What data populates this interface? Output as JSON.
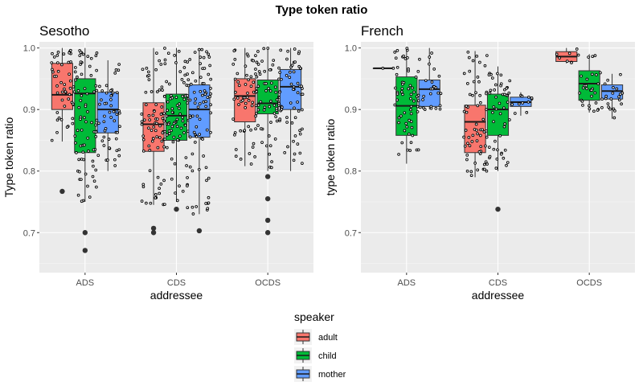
{
  "title": "Type token ratio",
  "legend": {
    "title": "speaker",
    "items": [
      {
        "label": "adult",
        "color": "#F8766D"
      },
      {
        "label": "child",
        "color": "#00BA38"
      },
      {
        "label": "mother",
        "color": "#619CFF"
      }
    ],
    "placement": "bottom-center"
  },
  "chart_data": [
    {
      "type": "boxplot",
      "title": "Sesotho",
      "xlabel": "addressee",
      "ylabel": "Type token ratio",
      "categories": [
        "ADS",
        "CDS",
        "OCDS"
      ],
      "ylim": [
        0.635,
        1.01
      ],
      "yticks": [
        "0.7",
        "0.8",
        "0.9",
        "1.0"
      ],
      "grid": true,
      "series": [
        {
          "name": "adult",
          "boxes": [
            {
              "category": "ADS",
              "min": 0.848,
              "q1": 0.9,
              "median": 0.924,
              "q3": 0.975,
              "max": 1.0,
              "outliers": [
                0.767
              ]
            },
            {
              "category": "CDS",
              "min": 0.745,
              "q1": 0.832,
              "median": 0.876,
              "q3": 0.911,
              "max": 1.0,
              "outliers": [
                0.707,
                0.7
              ]
            },
            {
              "category": "OCDS",
              "min": 0.808,
              "q1": 0.88,
              "median": 0.922,
              "q3": 0.95,
              "max": 1.0,
              "outliers": []
            }
          ]
        },
        {
          "name": "child",
          "boxes": [
            {
              "category": "ADS",
              "min": 0.75,
              "q1": 0.83,
              "median": 0.926,
              "q3": 0.95,
              "max": 1.0,
              "outliers": [
                0.7,
                0.671
              ]
            },
            {
              "category": "CDS",
              "min": 0.75,
              "q1": 0.85,
              "median": 0.89,
              "q3": 0.925,
              "max": 1.0,
              "outliers": [
                0.738
              ]
            },
            {
              "category": "OCDS",
              "min": 0.8,
              "q1": 0.893,
              "median": 0.91,
              "q3": 0.948,
              "max": 1.0,
              "outliers": [
                0.791,
                0.755,
                0.72,
                0.7
              ]
            }
          ]
        },
        {
          "name": "mother",
          "boxes": [
            {
              "category": "ADS",
              "min": 0.8,
              "q1": 0.862,
              "median": 0.9,
              "q3": 0.928,
              "max": 0.98,
              "outliers": []
            },
            {
              "category": "CDS",
              "min": 0.73,
              "q1": 0.855,
              "median": 0.9,
              "q3": 0.94,
              "max": 1.0,
              "outliers": [
                0.703
              ]
            },
            {
              "category": "OCDS",
              "min": 0.8,
              "q1": 0.9,
              "median": 0.937,
              "q3": 0.965,
              "max": 1.0,
              "outliers": []
            }
          ]
        }
      ]
    },
    {
      "type": "boxplot",
      "title": "French",
      "xlabel": "addressee",
      "ylabel": "type token ratio",
      "categories": [
        "ADS",
        "CDS",
        "OCDS"
      ],
      "ylim": [
        0.635,
        1.01
      ],
      "yticks": [
        "0.7",
        "0.8",
        "0.9",
        "1.0"
      ],
      "grid": true,
      "series": [
        {
          "name": "adult",
          "boxes": [
            {
              "category": "ADS",
              "min": 0.967,
              "q1": 0.967,
              "median": 0.967,
              "q3": 0.967,
              "max": 0.967,
              "outliers": []
            },
            {
              "category": "CDS",
              "min": 0.79,
              "q1": 0.83,
              "median": 0.88,
              "q3": 0.907,
              "max": 0.995,
              "outliers": []
            },
            {
              "category": "OCDS",
              "min": 0.975,
              "q1": 0.978,
              "median": 0.986,
              "q3": 0.994,
              "max": 1.0,
              "outliers": []
            }
          ]
        },
        {
          "name": "child",
          "boxes": [
            {
              "category": "ADS",
              "min": 0.812,
              "q1": 0.858,
              "median": 0.906,
              "q3": 0.953,
              "max": 1.0,
              "outliers": []
            },
            {
              "category": "CDS",
              "min": 0.8,
              "q1": 0.858,
              "median": 0.9,
              "q3": 0.925,
              "max": 0.97,
              "outliers": [
                0.738
              ]
            },
            {
              "category": "OCDS",
              "min": 0.895,
              "q1": 0.915,
              "median": 0.942,
              "q3": 0.963,
              "max": 0.99,
              "outliers": []
            }
          ]
        },
        {
          "name": "mother",
          "boxes": [
            {
              "category": "ADS",
              "min": 0.9,
              "q1": 0.905,
              "median": 0.933,
              "q3": 0.948,
              "max": 1.0,
              "outliers": []
            },
            {
              "category": "CDS",
              "min": 0.89,
              "q1": 0.905,
              "median": 0.912,
              "q3": 0.92,
              "max": 0.928,
              "outliers": []
            },
            {
              "category": "OCDS",
              "min": 0.885,
              "q1": 0.917,
              "median": 0.93,
              "q3": 0.94,
              "max": 0.958,
              "outliers": []
            }
          ]
        }
      ]
    }
  ]
}
